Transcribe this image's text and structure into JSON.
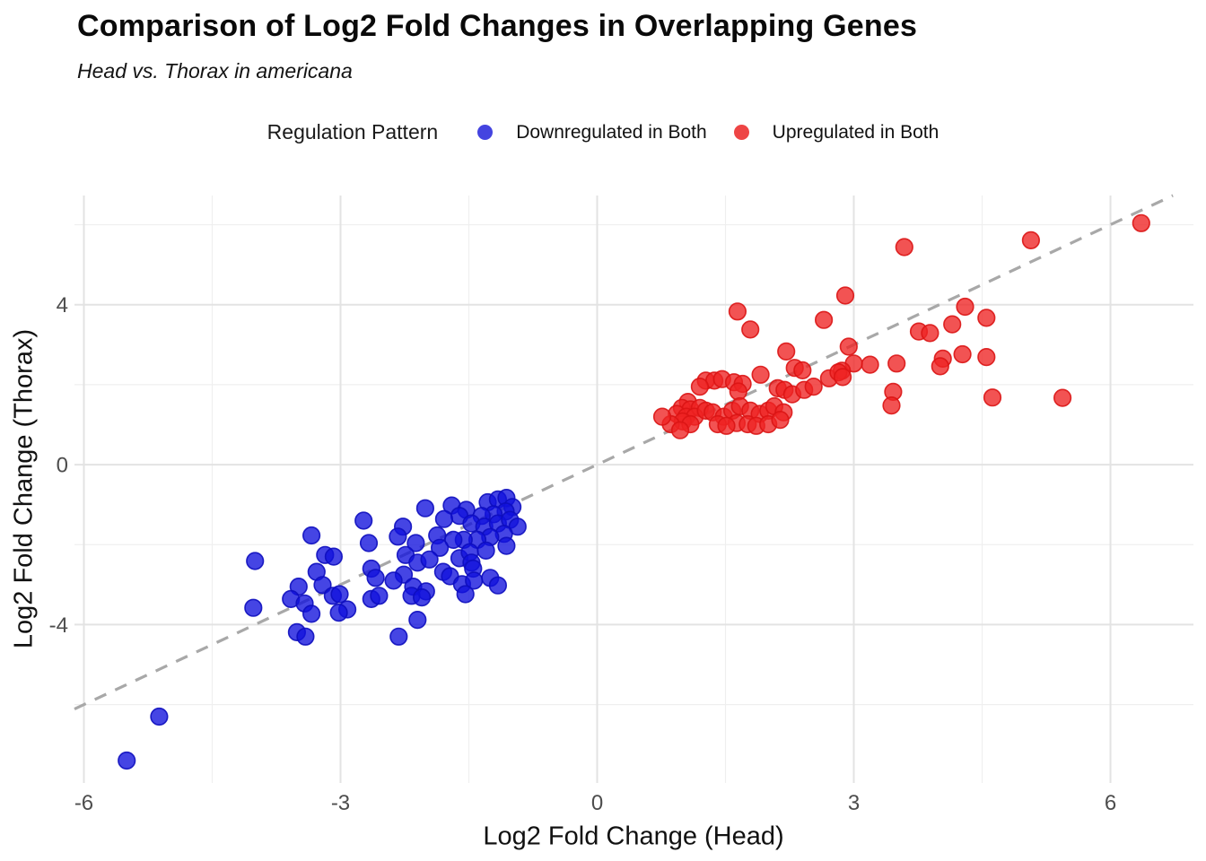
{
  "title": "Comparison of Log2 Fold Changes in Overlapping Genes",
  "subtitle": "Head vs. Thorax in americana",
  "legend": {
    "title": "Regulation Pattern",
    "items": [
      {
        "label": "Downregulated in Both",
        "color": "#4444e0"
      },
      {
        "label": "Upregulated in Both",
        "color": "#ee4545"
      }
    ]
  },
  "colors": {
    "down_fill": "#1111dd",
    "down_stroke": "#0d0dbe",
    "up_fill": "#ee2222",
    "up_stroke": "#da1414",
    "identity_line": "#a8a8a8",
    "grid_major": "#e3e3e3",
    "grid_minor": "#efefef",
    "axis_text": "#4d4d4d"
  },
  "chart_data": {
    "type": "scatter",
    "title": "Comparison of Log2 Fold Changes in Overlapping Genes",
    "subtitle": "Head vs. Thorax in americana",
    "xlabel": "Log2 Fold Change (Head)",
    "ylabel": "Log2 Fold Change (Thorax)",
    "xlim": [
      -6.11,
      6.97
    ],
    "ylim": [
      -7.96,
      6.73
    ],
    "x_ticks": [
      -6,
      -3,
      0,
      3,
      6
    ],
    "y_ticks": [
      -4,
      0,
      4
    ],
    "x_minor": [
      -4.5,
      -1.5,
      1.5,
      4.5
    ],
    "y_minor": [
      -6,
      -2,
      2,
      6
    ],
    "grid": true,
    "legend_position": "top",
    "identity_line": {
      "equation": "y = x",
      "style": "dashed"
    },
    "series": [
      {
        "name": "Downregulated in Both",
        "points": [
          [
            -4.0,
            -2.41
          ],
          [
            -4.02,
            -3.58
          ],
          [
            -3.34,
            -1.77
          ],
          [
            -3.49,
            -3.05
          ],
          [
            -3.58,
            -3.36
          ],
          [
            -3.42,
            -3.47
          ],
          [
            -3.34,
            -3.73
          ],
          [
            -3.51,
            -4.19
          ],
          [
            -3.41,
            -4.3
          ],
          [
            -3.28,
            -2.68
          ],
          [
            -3.18,
            -2.26
          ],
          [
            -3.08,
            -2.3
          ],
          [
            -3.21,
            -3.01
          ],
          [
            -3.09,
            -3.28
          ],
          [
            -3.01,
            -3.24
          ],
          [
            -2.92,
            -3.62
          ],
          [
            -3.02,
            -3.7
          ],
          [
            -2.73,
            -1.4
          ],
          [
            -2.67,
            -1.96
          ],
          [
            -2.64,
            -2.6
          ],
          [
            -2.59,
            -2.83
          ],
          [
            -2.64,
            -3.36
          ],
          [
            -2.55,
            -3.28
          ],
          [
            -5.12,
            -6.3
          ],
          [
            -5.5,
            -7.4
          ],
          [
            -2.01,
            -1.09
          ],
          [
            -2.27,
            -1.55
          ],
          [
            -2.33,
            -1.8
          ],
          [
            -1.87,
            -1.77
          ],
          [
            -1.7,
            -1.02
          ],
          [
            -1.53,
            -1.13
          ],
          [
            -1.61,
            -1.28
          ],
          [
            -1.79,
            -1.36
          ],
          [
            -1.28,
            -0.94
          ],
          [
            -1.16,
            -0.87
          ],
          [
            -1.06,
            -0.83
          ],
          [
            -0.99,
            -1.06
          ],
          [
            -1.07,
            -1.17
          ],
          [
            -1.21,
            -1.24
          ],
          [
            -1.35,
            -1.28
          ],
          [
            -1.47,
            -1.47
          ],
          [
            -1.32,
            -1.55
          ],
          [
            -1.16,
            -1.47
          ],
          [
            -1.02,
            -1.38
          ],
          [
            -0.93,
            -1.55
          ],
          [
            -1.09,
            -1.73
          ],
          [
            -1.25,
            -1.81
          ],
          [
            -1.4,
            -1.88
          ],
          [
            -1.56,
            -1.88
          ],
          [
            -1.68,
            -1.88
          ],
          [
            -1.84,
            -2.08
          ],
          [
            -2.12,
            -1.96
          ],
          [
            -2.24,
            -2.26
          ],
          [
            -2.1,
            -2.45
          ],
          [
            -1.96,
            -2.37
          ],
          [
            -2.26,
            -2.75
          ],
          [
            -2.38,
            -2.9
          ],
          [
            -2.15,
            -3.05
          ],
          [
            -2.0,
            -3.17
          ],
          [
            -1.8,
            -2.68
          ],
          [
            -1.72,
            -2.79
          ],
          [
            -1.61,
            -2.34
          ],
          [
            -1.49,
            -2.19
          ],
          [
            -1.47,
            -2.45
          ],
          [
            -1.45,
            -2.6
          ],
          [
            -1.3,
            -2.15
          ],
          [
            -1.58,
            -2.99
          ],
          [
            -1.44,
            -2.9
          ],
          [
            -1.54,
            -3.24
          ],
          [
            -1.25,
            -2.83
          ],
          [
            -1.16,
            -3.02
          ],
          [
            -2.17,
            -3.28
          ],
          [
            -2.05,
            -3.32
          ],
          [
            -2.1,
            -3.88
          ],
          [
            -2.32,
            -4.3
          ],
          [
            -1.06,
            -2.03
          ]
        ]
      },
      {
        "name": "Upregulated in Both",
        "points": [
          [
            1.64,
            3.83
          ],
          [
            1.79,
            3.38
          ],
          [
            2.65,
            3.62
          ],
          [
            2.21,
            2.83
          ],
          [
            2.31,
            2.42
          ],
          [
            2.4,
            2.36
          ],
          [
            1.91,
            2.25
          ],
          [
            1.27,
            2.1
          ],
          [
            1.37,
            2.1
          ],
          [
            1.46,
            2.14
          ],
          [
            1.2,
            1.95
          ],
          [
            1.6,
            2.06
          ],
          [
            1.7,
            2.02
          ],
          [
            1.65,
            1.83
          ],
          [
            2.11,
            1.91
          ],
          [
            2.19,
            1.87
          ],
          [
            2.28,
            1.76
          ],
          [
            2.42,
            1.87
          ],
          [
            2.53,
            1.95
          ],
          [
            2.71,
            2.16
          ],
          [
            1.06,
            1.57
          ],
          [
            0.99,
            1.42
          ],
          [
            1.09,
            1.38
          ],
          [
            1.2,
            1.42
          ],
          [
            0.93,
            1.27
          ],
          [
            1.04,
            1.2
          ],
          [
            1.14,
            1.2
          ],
          [
            1.27,
            1.35
          ],
          [
            1.35,
            1.31
          ],
          [
            1.48,
            1.2
          ],
          [
            1.58,
            1.35
          ],
          [
            1.67,
            1.46
          ],
          [
            1.79,
            1.35
          ],
          [
            1.9,
            1.27
          ],
          [
            2.0,
            1.35
          ],
          [
            2.07,
            1.46
          ],
          [
            2.18,
            1.31
          ],
          [
            1.63,
            1.04
          ],
          [
            1.76,
            1.01
          ],
          [
            1.86,
            0.97
          ],
          [
            2.0,
            1.01
          ],
          [
            2.14,
            1.12
          ],
          [
            1.41,
            1.01
          ],
          [
            1.51,
            0.97
          ],
          [
            1.0,
            1.08
          ],
          [
            1.09,
            1.01
          ],
          [
            0.86,
            1.01
          ],
          [
            0.76,
            1.2
          ],
          [
            0.97,
            0.86
          ],
          [
            3.59,
            5.44
          ],
          [
            2.9,
            4.23
          ],
          [
            4.3,
            3.95
          ],
          [
            4.55,
            3.67
          ],
          [
            4.15,
            3.51
          ],
          [
            3.76,
            3.33
          ],
          [
            3.89,
            3.29
          ],
          [
            4.27,
            2.76
          ],
          [
            4.55,
            2.69
          ],
          [
            4.04,
            2.65
          ],
          [
            4.01,
            2.46
          ],
          [
            3.5,
            2.53
          ],
          [
            3.19,
            2.5
          ],
          [
            2.94,
            2.95
          ],
          [
            3.0,
            2.53
          ],
          [
            2.86,
            2.35
          ],
          [
            2.82,
            2.31
          ],
          [
            2.87,
            2.19
          ],
          [
            3.46,
            1.82
          ],
          [
            3.44,
            1.48
          ],
          [
            6.36,
            6.04
          ],
          [
            5.07,
            5.61
          ],
          [
            4.62,
            1.68
          ],
          [
            5.44,
            1.67
          ]
        ]
      }
    ]
  }
}
